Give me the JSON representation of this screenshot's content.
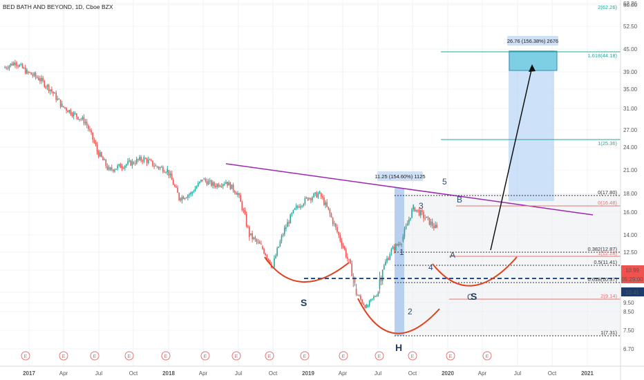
{
  "header": {
    "title": "BED BATH AND BEYOND, 1D, Cboe BZX"
  },
  "chart_data": {
    "type": "candlestick",
    "title": "BED BATH AND BEYOND, 1D, Cboe BZX",
    "x_ticks": [
      "2017",
      "Apr",
      "Jul",
      "Oct",
      "2018",
      "Apr",
      "Jul",
      "Oct",
      "2019",
      "Apr",
      "Jul",
      "Oct",
      "2020",
      "Apr",
      "Jul",
      "Oct",
      "2021"
    ],
    "y_ticks": [
      "62.26",
      "60.00",
      "52.50",
      "45.00",
      "39.00",
      "35.00",
      "31.00",
      "27.00",
      "24.00",
      "21.00",
      "18.00",
      "16.00",
      "14.00",
      "12.50",
      "10.99",
      "10.41",
      "9.50",
      "8.50",
      "7.50",
      "6.70"
    ],
    "y_tick_values": [
      62.26,
      60.0,
      52.5,
      45.0,
      39.0,
      35.0,
      31.0,
      27.0,
      24.0,
      21.0,
      18.0,
      16.0,
      14.0,
      12.5,
      10.99,
      10.41,
      9.5,
      8.5,
      7.5,
      6.7
    ],
    "ylim": [
      6.7,
      62.26
    ],
    "y_scale": "log",
    "price_series": [
      {
        "date": "2017-01",
        "close": 40.0
      },
      {
        "date": "2017-02",
        "close": 41.5
      },
      {
        "date": "2017-03",
        "close": 39.0
      },
      {
        "date": "2017-04",
        "close": 37.5
      },
      {
        "date": "2017-05",
        "close": 35.0
      },
      {
        "date": "2017-06",
        "close": 31.5
      },
      {
        "date": "2017-07",
        "close": 30.0
      },
      {
        "date": "2017-08",
        "close": 28.5
      },
      {
        "date": "2017-09",
        "close": 23.5
      },
      {
        "date": "2017-10",
        "close": 21.0
      },
      {
        "date": "2017-11",
        "close": 21.5
      },
      {
        "date": "2017-12",
        "close": 22.0
      },
      {
        "date": "2018-01",
        "close": 22.5
      },
      {
        "date": "2018-02",
        "close": 21.5
      },
      {
        "date": "2018-03",
        "close": 21.0
      },
      {
        "date": "2018-04",
        "close": 17.5
      },
      {
        "date": "2018-05",
        "close": 18.0
      },
      {
        "date": "2018-06",
        "close": 19.8
      },
      {
        "date": "2018-07",
        "close": 19.0
      },
      {
        "date": "2018-08",
        "close": 19.5
      },
      {
        "date": "2018-09",
        "close": 18.0
      },
      {
        "date": "2018-10",
        "close": 14.0
      },
      {
        "date": "2018-11",
        "close": 13.0
      },
      {
        "date": "2018-12",
        "close": 11.5
      },
      {
        "date": "2019-01",
        "close": 14.5
      },
      {
        "date": "2019-02",
        "close": 16.5
      },
      {
        "date": "2019-03",
        "close": 17.5
      },
      {
        "date": "2019-04",
        "close": 18.0
      },
      {
        "date": "2019-05",
        "close": 15.5
      },
      {
        "date": "2019-06",
        "close": 13.0
      },
      {
        "date": "2019-07",
        "close": 10.5
      },
      {
        "date": "2019-08",
        "close": 9.0
      },
      {
        "date": "2019-09",
        "close": 10.5
      },
      {
        "date": "2019-10",
        "close": 12.5
      },
      {
        "date": "2019-11",
        "close": 13.5
      },
      {
        "date": "2019-12",
        "close": 16.5
      },
      {
        "date": "2020-01",
        "close": 15.5
      },
      {
        "date": "2020-02",
        "close": 14.5
      }
    ],
    "fib_levels": [
      {
        "label": "0(17.80)",
        "value": 17.8
      },
      {
        "label": "0(16.48)",
        "value": 16.48
      },
      {
        "label": "0.382(12.87)",
        "value": 12.87
      },
      {
        "label": "1(12.28)",
        "value": 12.28
      },
      {
        "label": "0.5(11.41)",
        "value": 11.41
      },
      {
        "label": "0.618(10.37)",
        "value": 10.37
      },
      {
        "label": "2(9.14)",
        "value": 9.14
      },
      {
        "label": "1(7.31)",
        "value": 7.31
      },
      {
        "label": "1(25.36)",
        "value": 25.36
      },
      {
        "label": "1.618(44.18)",
        "value": 44.18
      },
      {
        "label": "2(62.26)",
        "value": 62.26
      }
    ],
    "current_price": {
      "value": 10.99,
      "time": "05:29:00"
    },
    "prev_close": 10.41,
    "measurements": [
      {
        "text": "11.25 (154.60%) 1125"
      },
      {
        "text": "26.76 (156.38%) 2676"
      }
    ],
    "wave_labels": [
      "1",
      "2",
      "3",
      "4",
      "5",
      "A",
      "B",
      "C"
    ],
    "pattern_labels": [
      "S",
      "H",
      "S"
    ],
    "earnings_marker": "E"
  }
}
